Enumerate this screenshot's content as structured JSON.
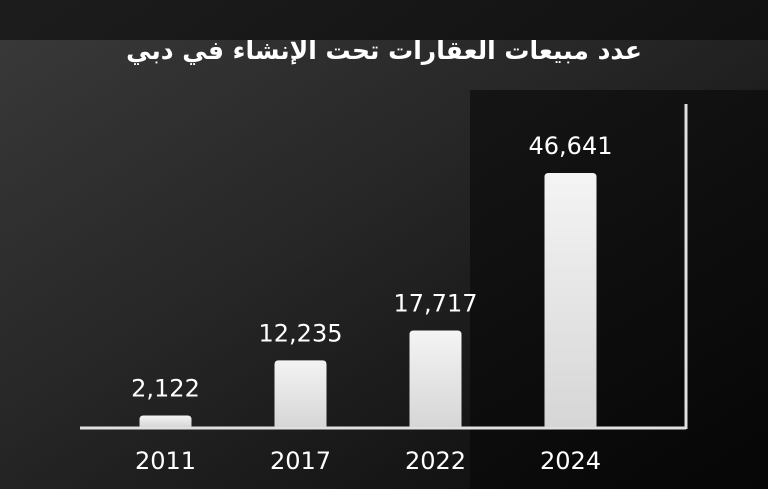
{
  "chart_data": {
    "type": "bar",
    "title": "عدد مبيعات العقارات تحت الإنشاء في دبي",
    "categories": [
      "2011",
      "2017",
      "2022",
      "2024"
    ],
    "values": [
      2122,
      12235,
      17717,
      46641
    ],
    "value_labels": [
      "2,122",
      "12,235",
      "17,717",
      "46,641"
    ],
    "color": "#ebebeb"
  }
}
